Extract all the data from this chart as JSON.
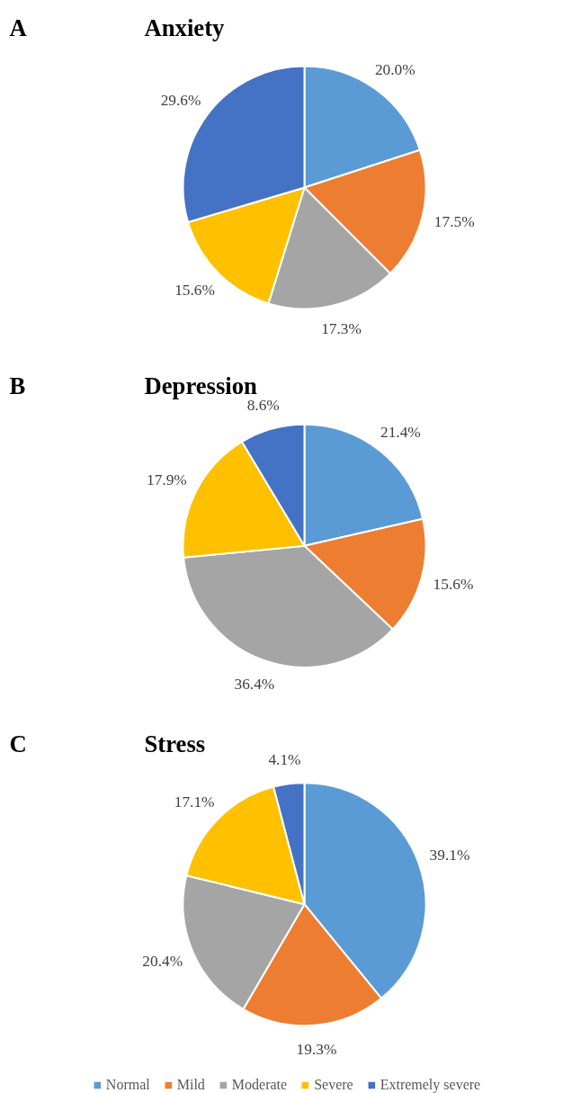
{
  "chart_data": [
    {
      "type": "pie",
      "title": "Anxiety",
      "annotations": [
        "A"
      ],
      "categories": [
        "Normal",
        "Mild",
        "Moderate",
        "Severe",
        "Extremely severe"
      ],
      "values": [
        20.0,
        17.5,
        17.3,
        15.6,
        29.6
      ],
      "value_labels": [
        "20.0%",
        "17.5%",
        "17.3%",
        "15.6%",
        "29.6%"
      ],
      "colors": [
        "#5b9bd5",
        "#ed7d31",
        "#a5a5a5",
        "#ffc000",
        "#4472c4"
      ],
      "legend": "bottom"
    },
    {
      "type": "pie",
      "title": "Depression",
      "annotations": [
        "B"
      ],
      "categories": [
        null,
        null,
        null,
        null,
        null
      ],
      "values": [
        21.4,
        15.6,
        36.4,
        17.9,
        8.6
      ],
      "value_labels": [
        "21.4%",
        "15.6%",
        "36.4%",
        "17.9%",
        "8.6%"
      ],
      "colors": [
        "#5b9bd5",
        "#ed7d31",
        "#a5a5a5",
        "#ffc000",
        "#4472c4"
      ],
      "legend": false
    },
    {
      "type": "pie",
      "title": "Stress",
      "annotations": [
        "C"
      ],
      "categories": [
        null,
        null,
        null,
        null,
        null
      ],
      "values": [
        39.1,
        19.3,
        20.4,
        17.1,
        4.1
      ],
      "value_labels": [
        "39.1%",
        "19.3%",
        "20.4%",
        "17.1%",
        "4.1%"
      ],
      "colors": [
        "#5b9bd5",
        "#ed7d31",
        "#a5a5a5",
        "#ffc000",
        "#4472c4"
      ],
      "legend": false
    }
  ]
}
